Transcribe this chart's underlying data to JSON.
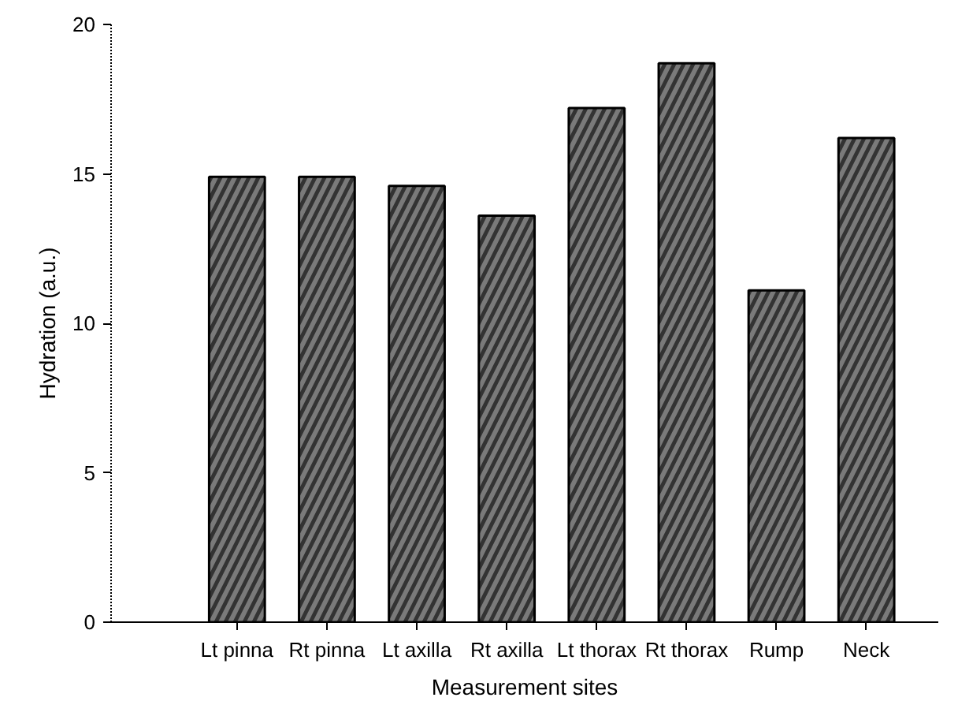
{
  "chart_data": {
    "type": "bar",
    "xlabel": "Measurement sites",
    "ylabel": "Hydration (a.u.)",
    "categories": [
      "Lt pinna",
      "Rt pinna",
      "Lt axilla",
      "Rt axilla",
      "Lt thorax",
      "Rt thorax",
      "Rump",
      "Neck"
    ],
    "values": [
      14.9,
      14.9,
      14.6,
      13.6,
      17.2,
      18.7,
      11.1,
      16.2
    ],
    "color": "#7a7a7a",
    "ylim": [
      0,
      20
    ],
    "yticks": [
      0,
      5,
      10,
      15,
      20
    ],
    "grid": false
  }
}
